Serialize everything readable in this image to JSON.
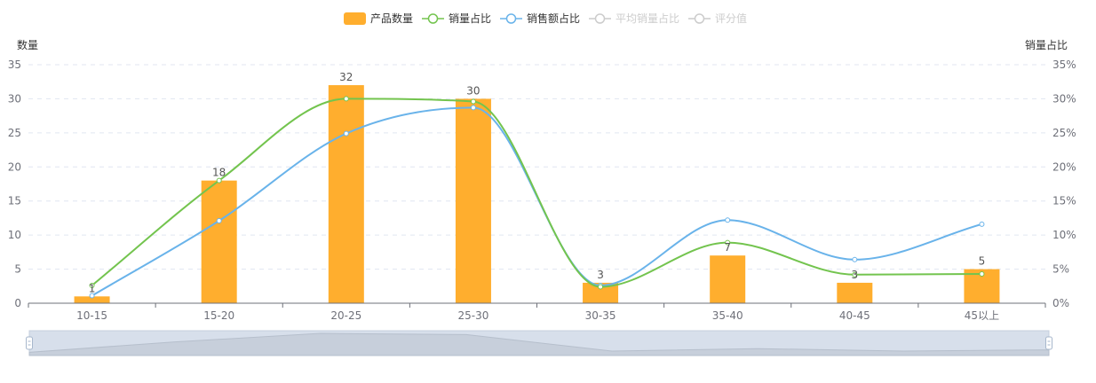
{
  "legend": {
    "items": [
      {
        "label": "产品数量",
        "kind": "bar",
        "color": "#ffae2e",
        "enabled": true
      },
      {
        "label": "销量占比",
        "kind": "line",
        "color": "#73c44e",
        "enabled": true
      },
      {
        "label": "销售额占比",
        "kind": "line",
        "color": "#69b3ea",
        "enabled": true
      },
      {
        "label": "平均销量占比",
        "kind": "line",
        "color": "#cccccc",
        "enabled": false
      },
      {
        "label": "评分值",
        "kind": "line",
        "color": "#cccccc",
        "enabled": false
      }
    ]
  },
  "chart_data": {
    "type": "bar",
    "categories": [
      "10-15",
      "15-20",
      "20-25",
      "25-30",
      "30-35",
      "35-40",
      "40-45",
      "45以上"
    ],
    "series": [
      {
        "name": "产品数量",
        "type": "bar",
        "axis": "left",
        "values": [
          1,
          18,
          32,
          30,
          3,
          7,
          3,
          5
        ]
      },
      {
        "name": "销量占比",
        "type": "line",
        "axis": "right",
        "values": [
          2.6,
          18,
          30,
          29.6,
          2.4,
          8.9,
          4.2,
          4.3
        ]
      },
      {
        "name": "销售额占比",
        "type": "line",
        "axis": "right",
        "values": [
          1.1,
          12.1,
          24.9,
          28.7,
          2.6,
          12.2,
          6.4,
          11.6
        ]
      }
    ],
    "ylabel": "数量",
    "y2label": "销量占比",
    "ylim": [
      0,
      35
    ],
    "yticks": [
      0,
      5,
      10,
      15,
      20,
      25,
      30,
      35
    ],
    "y2lim": [
      0,
      35
    ],
    "y2ticks": [
      "0%",
      "5%",
      "10%",
      "15%",
      "20%",
      "25%",
      "30%",
      "35%"
    ],
    "grid": true,
    "legend_position": "top-center",
    "colors": {
      "bar": "#ffae2e",
      "line1": "#73c44e",
      "line2": "#69b3ea"
    }
  }
}
